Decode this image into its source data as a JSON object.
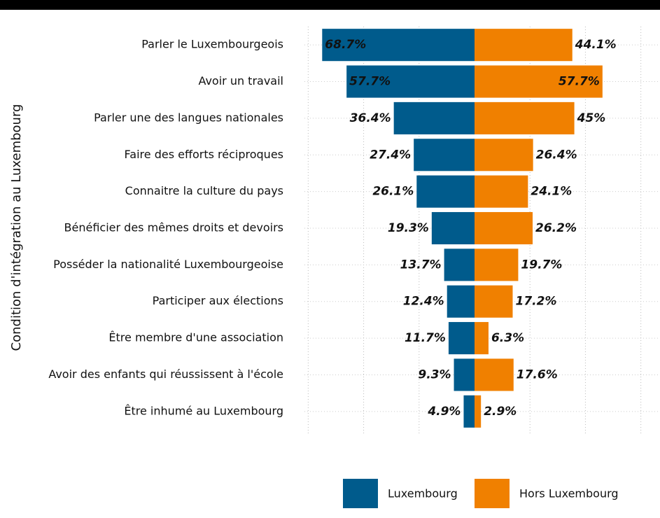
{
  "chart_data": {
    "type": "diverging-bar",
    "y_label": "Condition d'intégration au Luxembourg",
    "categories": [
      "Parler le Luxembourgeois",
      "Avoir un travail",
      "Parler une des langues nationales",
      "Faire des efforts réciproques",
      "Connaitre la culture du pays",
      "Bénéficier des mêmes droits et devoirs",
      "Posséder la nationalité Luxembourgeoise",
      "Participer aux élections",
      "Être membre d'une association",
      "Avoir des enfants qui réussissent à l'école",
      "Être inhumé au Luxembourg"
    ],
    "series": [
      {
        "name": "Luxembourg",
        "color": "#005b8c",
        "side": "left",
        "values": [
          68.7,
          57.7,
          36.4,
          27.4,
          26.1,
          19.3,
          13.7,
          12.4,
          11.7,
          9.3,
          4.9
        ],
        "value_labels": [
          "68.7%",
          "57.7%",
          "36.4%",
          "27.4%",
          "26.1%",
          "19.3%",
          "13.7%",
          "12.4%",
          "11.7%",
          "9.3%",
          "4.9%"
        ]
      },
      {
        "name": "Hors Luxembourg",
        "color": "#f08000",
        "side": "right",
        "values": [
          44.1,
          57.7,
          45,
          26.4,
          24.1,
          26.2,
          19.7,
          17.2,
          6.3,
          17.6,
          2.9
        ],
        "value_labels": [
          "44.1%",
          "57.7%",
          "45%",
          "26.4%",
          "24.1%",
          "26.2%",
          "19.7%",
          "17.2%",
          "6.3%",
          "17.6%",
          "2.9%"
        ]
      }
    ],
    "xlim": [
      -83,
      83
    ],
    "xgrid": [
      -75,
      -50,
      -25,
      25,
      50,
      75
    ],
    "grid": true,
    "legend": "bottom"
  }
}
